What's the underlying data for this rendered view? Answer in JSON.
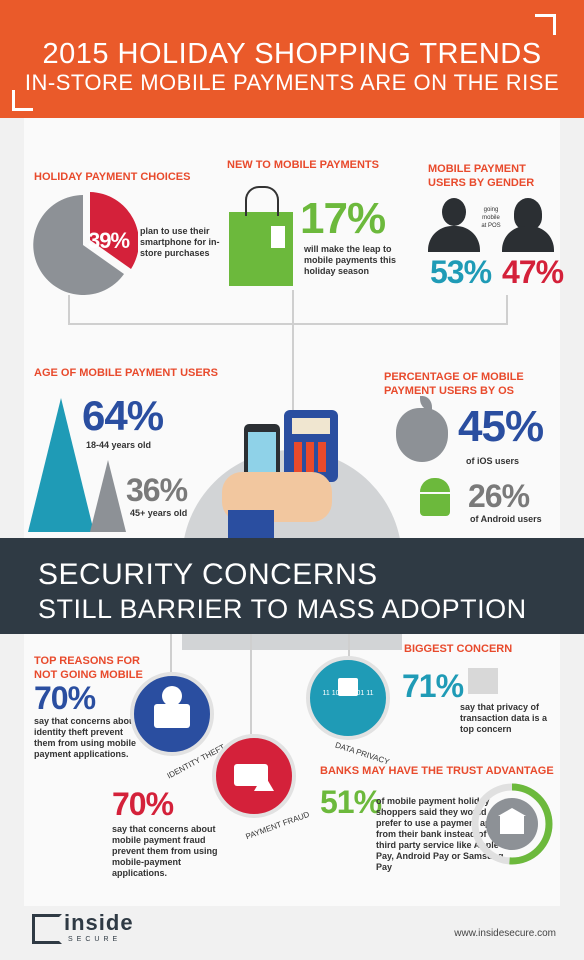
{
  "header": {
    "title": "2015 HOLIDAY SHOPPING TRENDS",
    "subtitle": "IN-STORE MOBILE PAYMENTS ARE ON THE RISE"
  },
  "holiday_payment": {
    "heading": "HOLIDAY PAYMENT CHOICES",
    "value": "39%",
    "value_fraction": 0.39,
    "text": "plan to use their smartphone for in-store purchases"
  },
  "new_to_mobile": {
    "heading": "NEW TO MOBILE PAYMENTS",
    "value": "17%",
    "text": "will make the leap to mobile payments this holiday season"
  },
  "gender": {
    "heading": "MOBILE PAYMENT USERS BY GENDER",
    "note": "going mobile at POS",
    "male_value": "53%",
    "female_value": "47%"
  },
  "age": {
    "heading": "AGE OF MOBILE PAYMENT USERS",
    "value1": "64%",
    "label1": "18-44 years old",
    "value2": "36%",
    "label2": "45+ years old"
  },
  "os": {
    "heading": "PERCENTAGE OF MOBILE PAYMENT USERS BY OS",
    "ios_value": "45%",
    "ios_label": "of iOS users",
    "android_value": "26%",
    "android_label": "of Android users"
  },
  "security": {
    "line1": "SECURITY CONCERNS",
    "line2": "STILL BARRIER TO MASS ADOPTION"
  },
  "reasons": {
    "heading": "TOP REASONS FOR NOT GOING MOBILE",
    "identity_value": "70%",
    "identity_text": "say that concerns about identity theft prevent them from using mobile payment applications.",
    "identity_label": "IDENTITY THEFT",
    "fraud_value": "70%",
    "fraud_text": "say that concerns about mobile payment fraud prevent them from using mobile-payment applications.",
    "fraud_label": "PAYMENT FRAUD",
    "privacy_label": "DATA PRIVACY",
    "binary_text": "11 10 110001 11"
  },
  "biggest": {
    "heading": "BIGGEST CONCERN",
    "value": "71%",
    "text": "say that privacy of transaction data is a top concern"
  },
  "banks": {
    "heading": "BANKS MAY HAVE THE TRUST ADVANTAGE",
    "value": "51%",
    "text": "of mobile payment holiday shoppers said they would prefer to use a payment app from their bank instead of a third party service like Apple Pay, Android Pay or Samsung Pay",
    "value_fraction": 0.51
  },
  "footer": {
    "logo_top": "inside",
    "logo_bottom": "SECURE",
    "url": "www.insidesecure.com"
  },
  "colors": {
    "orange": "#ea5a2a",
    "blue": "#2a4ea0",
    "green": "#6cb93c",
    "teal": "#1f9bb6",
    "red": "#d4213a",
    "dark": "#2f3a44"
  }
}
